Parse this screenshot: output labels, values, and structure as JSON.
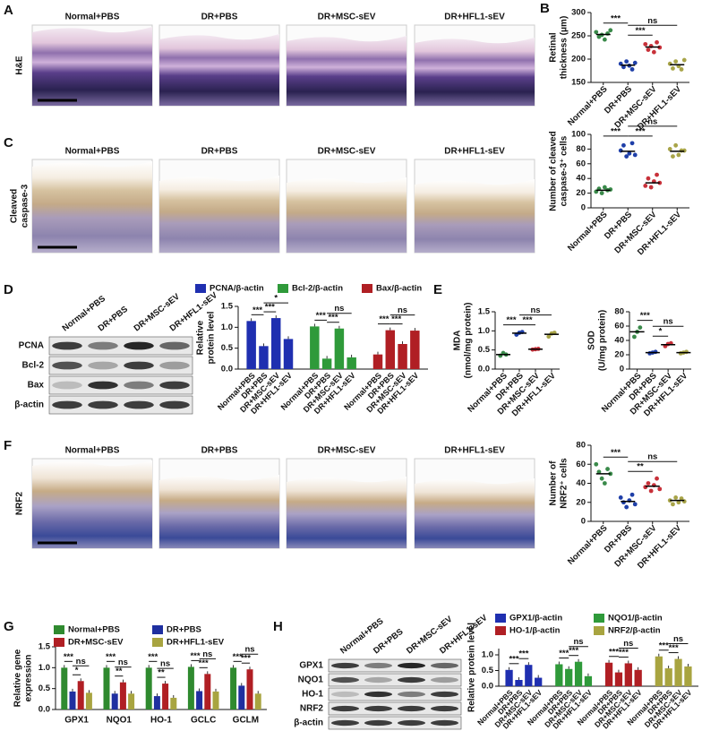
{
  "panel_letters": [
    "A",
    "B",
    "C",
    "D",
    "E",
    "F",
    "G",
    "H"
  ],
  "micrographs": [
    {
      "row_label": [
        "H&E"
      ],
      "columns": [
        "Normal+PBS",
        "DR+PBS",
        "DR+MSC-sEV",
        "DR+HFL1-sEV"
      ]
    },
    {
      "row_label": [
        "Cleaved",
        "caspase-3"
      ],
      "columns": [
        "Normal+PBS",
        "DR+PBS",
        "DR+MSC-sEV",
        "DR+HFL1-sEV"
      ]
    },
    {
      "row_label": [
        "NRF2"
      ],
      "columns": [
        "Normal+PBS",
        "DR+PBS",
        "DR+MSC-sEV",
        "DR+HFL1-sEV"
      ]
    }
  ],
  "blots": [
    {
      "lanes": [
        "Normal+PBS",
        "DR+PBS",
        "DR+MSC-sEV",
        "DR+HFL1-sEV"
      ],
      "rows": [
        "PCNA",
        "Bcl-2",
        "Bax",
        "β-actin"
      ]
    },
    {
      "lanes": [
        "Normal+PBS",
        "DR+PBS",
        "DR+MSC-sEV",
        "DR+HFL1-sEV"
      ],
      "rows": [
        "GPX1",
        "NQO1",
        "HO-1",
        "NRF2",
        "β-actin"
      ]
    }
  ],
  "chart_data": [
    {
      "type": "dot",
      "ylabel": [
        "Retinal",
        "thickness (μm)"
      ],
      "categories": [
        "Normal+PBS",
        "DR+PBS",
        "DR+MSC-sEV",
        "DR+HFL1-sEV"
      ],
      "colors": [
        "#3a8a4a",
        "#1f3fa8",
        "#c8313a",
        "#a8a448"
      ],
      "values": [
        253,
        187,
        226,
        188
      ],
      "points": [
        [
          258,
          248,
          252,
          242,
          255,
          262
        ],
        [
          190,
          183,
          195,
          186,
          178,
          192
        ],
        [
          232,
          220,
          228,
          215,
          236,
          225
        ],
        [
          190,
          180,
          195,
          185,
          178,
          198
        ]
      ],
      "ylim": [
        150,
        300
      ],
      "yticks": [
        150,
        200,
        250,
        300
      ],
      "annotations": [
        {
          "text": "***",
          "pair": [
            0,
            1
          ]
        },
        {
          "text": "***",
          "pair": [
            1,
            2
          ]
        },
        {
          "text": "ns",
          "pair": [
            1,
            3
          ]
        }
      ]
    },
    {
      "type": "dot",
      "ylabel": [
        "Number of cleaved",
        "caspase-3⁺ cells"
      ],
      "categories": [
        "Normal+PBS",
        "DR+PBS",
        "DR+MSC-sEV",
        "DR+HFL1-sEV"
      ],
      "colors": [
        "#3a8a4a",
        "#1f3fa8",
        "#c8313a",
        "#a8a448"
      ],
      "values": [
        24,
        77,
        34,
        77
      ],
      "points": [
        [
          22,
          26,
          20,
          28,
          24,
          25
        ],
        [
          78,
          85,
          70,
          74,
          88,
          72
        ],
        [
          30,
          40,
          28,
          36,
          45,
          34
        ],
        [
          80,
          70,
          85,
          72,
          78,
          78
        ]
      ],
      "ylim": [
        0,
        100
      ],
      "yticks": [
        0,
        20,
        40,
        60,
        80,
        100
      ],
      "annotations": [
        {
          "text": "***",
          "pair": [
            0,
            1
          ]
        },
        {
          "text": "***",
          "pair": [
            1,
            2
          ]
        },
        {
          "text": "ns",
          "pair": [
            1,
            3
          ]
        }
      ]
    },
    {
      "type": "bar",
      "ylabel": [
        "Relative",
        "protein level"
      ],
      "categories": [
        "Normal+PBS",
        "DR+PBS",
        "DR+MSC-sEV",
        "DR+HFL1-sEV"
      ],
      "series": [
        {
          "name": "PCNA/β-actin",
          "color": "#1f2fb0",
          "values": [
            1.15,
            0.55,
            1.22,
            0.72
          ]
        },
        {
          "name": "Bcl-2/β-actin",
          "color": "#2f9a3a",
          "values": [
            1.02,
            0.25,
            0.97,
            0.28
          ]
        },
        {
          "name": "Bax/β-actin",
          "color": "#b01f24",
          "values": [
            0.35,
            0.93,
            0.6,
            0.92
          ]
        }
      ],
      "ylim": [
        0,
        1.5
      ],
      "yticks": [
        {
          "value": 0,
          "label": "0.0"
        },
        0.5,
        {
          "value": 1,
          "label": "1.0"
        },
        1.5
      ],
      "annotations": [
        {
          "text": "***",
          "cluster": 0,
          "pair": [
            0,
            1
          ]
        },
        {
          "text": "***",
          "cluster": 0,
          "pair": [
            1,
            2
          ]
        },
        {
          "text": "*",
          "cluster": 0,
          "pair": [
            1,
            3
          ]
        },
        {
          "text": "***",
          "cluster": 1,
          "pair": [
            0,
            1
          ]
        },
        {
          "text": "***",
          "cluster": 1,
          "pair": [
            1,
            2
          ]
        },
        {
          "text": "ns",
          "cluster": 1,
          "pair": [
            1,
            3
          ]
        },
        {
          "text": "***",
          "cluster": 2,
          "pair": [
            0,
            1
          ]
        },
        {
          "text": "***",
          "cluster": 2,
          "pair": [
            1,
            2
          ]
        },
        {
          "text": "ns",
          "cluster": 2,
          "pair": [
            1,
            3
          ]
        }
      ]
    },
    {
      "type": "dot",
      "ylabel": [
        "MDA",
        "(nmol/mg protein)"
      ],
      "categories": [
        "Normal+PBS",
        "DR+PBS",
        "DR+MSC-sEV",
        "DR+HFL1-sEV"
      ],
      "colors": [
        "#3a8a4a",
        "#1f3fa8",
        "#c8313a",
        "#a8a448"
      ],
      "values": [
        0.38,
        0.94,
        0.52,
        0.91
      ],
      "points": [
        [
          0.35,
          0.42,
          0.38
        ],
        [
          0.9,
          0.95,
          0.97
        ],
        [
          0.51,
          0.52,
          0.53
        ],
        [
          0.85,
          0.93,
          0.95
        ]
      ],
      "ylim": [
        0,
        1.5
      ],
      "yticks": [
        {
          "value": 0,
          "label": "0.0"
        },
        0.5,
        {
          "value": 1,
          "label": "1.0"
        },
        1.5
      ],
      "annotations": [
        {
          "text": "***",
          "pair": [
            0,
            1
          ]
        },
        {
          "text": "***",
          "pair": [
            1,
            2
          ]
        },
        {
          "text": "ns",
          "pair": [
            1,
            3
          ]
        }
      ]
    },
    {
      "type": "dot",
      "ylabel": [
        "SOD",
        "(U/mg protein)"
      ],
      "categories": [
        "Normal+PBS",
        "DR+PBS",
        "DR+MSC-sEV",
        "DR+HFL1-sEV"
      ],
      "colors": [
        "#3a8a4a",
        "#1f3fa8",
        "#c8313a",
        "#a8a448"
      ],
      "values": [
        52,
        23,
        34,
        23
      ],
      "points": [
        [
          45,
          52,
          58
        ],
        [
          22,
          23,
          24
        ],
        [
          32,
          35,
          36
        ],
        [
          22,
          23,
          24
        ]
      ],
      "ylim": [
        0,
        80
      ],
      "yticks": [
        0,
        20,
        40,
        60,
        80
      ],
      "annotations": [
        {
          "text": "***",
          "pair": [
            0,
            1
          ]
        },
        {
          "text": "*",
          "pair": [
            1,
            2
          ]
        },
        {
          "text": "ns",
          "pair": [
            1,
            3
          ]
        }
      ]
    },
    {
      "type": "dot",
      "ylabel": [
        "Number of",
        "NRF2⁺ cells"
      ],
      "categories": [
        "Normal+PBS",
        "DR+PBS",
        "DR+MSC-sEV",
        "DR+HFL1-sEV"
      ],
      "colors": [
        "#3a8a4a",
        "#1f3fa8",
        "#c8313a",
        "#a8a448"
      ],
      "values": [
        50,
        21,
        37,
        22
      ],
      "points": [
        [
          60,
          52,
          45,
          40,
          55,
          50
        ],
        [
          25,
          20,
          15,
          22,
          28,
          18
        ],
        [
          36,
          40,
          32,
          38,
          45,
          34
        ],
        [
          22,
          18,
          25,
          20,
          24,
          21
        ]
      ],
      "ylim": [
        0,
        80
      ],
      "yticks": [
        0,
        20,
        40,
        60,
        80
      ],
      "annotations": [
        {
          "text": "***",
          "pair": [
            0,
            1
          ]
        },
        {
          "text": "**",
          "pair": [
            1,
            2
          ]
        },
        {
          "text": "ns",
          "pair": [
            1,
            3
          ]
        }
      ]
    },
    {
      "type": "bar",
      "ylabel": [
        "Relative gene",
        "expression"
      ],
      "categories": [
        "GPX1",
        "NQO1",
        "HO-1",
        "GCLC",
        "GCLM"
      ],
      "series": [
        {
          "name": "Normal+PBS",
          "color": "#2f8a2f",
          "values": [
            1.0,
            1.0,
            1.0,
            1.02,
            1.0
          ]
        },
        {
          "name": "DR+PBS",
          "color": "#1f2fa0",
          "values": [
            0.43,
            0.38,
            0.32,
            0.44,
            0.57
          ]
        },
        {
          "name": "DR+MSC-sEV",
          "color": "#b01f24",
          "values": [
            0.68,
            0.65,
            0.62,
            0.85,
            0.96
          ]
        },
        {
          "name": "DR+HFL1-sEV",
          "color": "#a8a440",
          "values": [
            0.4,
            0.38,
            0.28,
            0.43,
            0.38
          ]
        }
      ],
      "ylim": [
        0,
        1.5
      ],
      "yticks": [
        {
          "value": 0,
          "label": "0.0"
        },
        0.5,
        {
          "value": 1,
          "label": "1.0"
        },
        1.5
      ],
      "annotations": [
        {
          "text": "***",
          "cluster": 0,
          "pair": [
            0,
            1
          ]
        },
        {
          "text": "*",
          "cluster": 0,
          "pair": [
            1,
            2
          ]
        },
        {
          "text": "ns",
          "cluster": 0,
          "pair": [
            1,
            3
          ]
        },
        {
          "text": "***",
          "cluster": 1,
          "pair": [
            0,
            1
          ]
        },
        {
          "text": "**",
          "cluster": 1,
          "pair": [
            1,
            2
          ]
        },
        {
          "text": "ns",
          "cluster": 1,
          "pair": [
            1,
            3
          ]
        },
        {
          "text": "***",
          "cluster": 2,
          "pair": [
            0,
            1
          ]
        },
        {
          "text": "**",
          "cluster": 2,
          "pair": [
            1,
            2
          ]
        },
        {
          "text": "ns",
          "cluster": 2,
          "pair": [
            1,
            3
          ]
        },
        {
          "text": "***",
          "cluster": 3,
          "pair": [
            0,
            1
          ]
        },
        {
          "text": "***",
          "cluster": 3,
          "pair": [
            1,
            2
          ]
        },
        {
          "text": "ns",
          "cluster": 3,
          "pair": [
            1,
            3
          ]
        },
        {
          "text": "***",
          "cluster": 4,
          "pair": [
            0,
            1
          ]
        },
        {
          "text": "***",
          "cluster": 4,
          "pair": [
            1,
            2
          ]
        },
        {
          "text": "ns",
          "cluster": 4,
          "pair": [
            1,
            3
          ]
        }
      ]
    },
    {
      "type": "bar",
      "ylabel": [
        "Relative protein level"
      ],
      "categories": [
        "Normal+PBS",
        "DR+PBS",
        "DR+MSC-sEV",
        "DR+HFL1-sEV"
      ],
      "series": [
        {
          "name": "GPX1/β-actin",
          "color": "#1f2fb0",
          "values": [
            0.52,
            0.2,
            0.68,
            0.27
          ]
        },
        {
          "name": "NQO1/β-actin",
          "color": "#2f9a3a",
          "values": [
            0.7,
            0.55,
            0.78,
            0.32
          ]
        },
        {
          "name": "HO-1/β-actin",
          "color": "#b01f24",
          "values": [
            0.75,
            0.44,
            0.73,
            0.52
          ]
        },
        {
          "name": "NRF2/β-actin",
          "color": "#a8a440",
          "values": [
            0.95,
            0.57,
            0.87,
            0.63
          ]
        }
      ],
      "ylim": [
        0,
        1.2
      ],
      "yticks": [
        {
          "value": 0,
          "label": "0.0"
        },
        0.5,
        {
          "value": 1,
          "label": "1.0"
        }
      ],
      "annotations": [
        {
          "text": "***",
          "cluster": 0,
          "pair": [
            0,
            1
          ]
        },
        {
          "text": "***",
          "cluster": 0,
          "pair": [
            1,
            2
          ]
        },
        {
          "text": "***",
          "cluster": 1,
          "pair": [
            0,
            1
          ]
        },
        {
          "text": "***",
          "cluster": 1,
          "pair": [
            1,
            2
          ]
        },
        {
          "text": "ns",
          "cluster": 1,
          "pair": [
            1,
            3
          ]
        },
        {
          "text": "***",
          "cluster": 2,
          "pair": [
            0,
            1
          ]
        },
        {
          "text": "***",
          "cluster": 2,
          "pair": [
            1,
            2
          ]
        },
        {
          "text": "ns",
          "cluster": 2,
          "pair": [
            1,
            3
          ]
        },
        {
          "text": "***",
          "cluster": 3,
          "pair": [
            0,
            1
          ]
        },
        {
          "text": "***",
          "cluster": 3,
          "pair": [
            1,
            2
          ]
        },
        {
          "text": "ns",
          "cluster": 3,
          "pair": [
            1,
            3
          ]
        }
      ]
    }
  ]
}
